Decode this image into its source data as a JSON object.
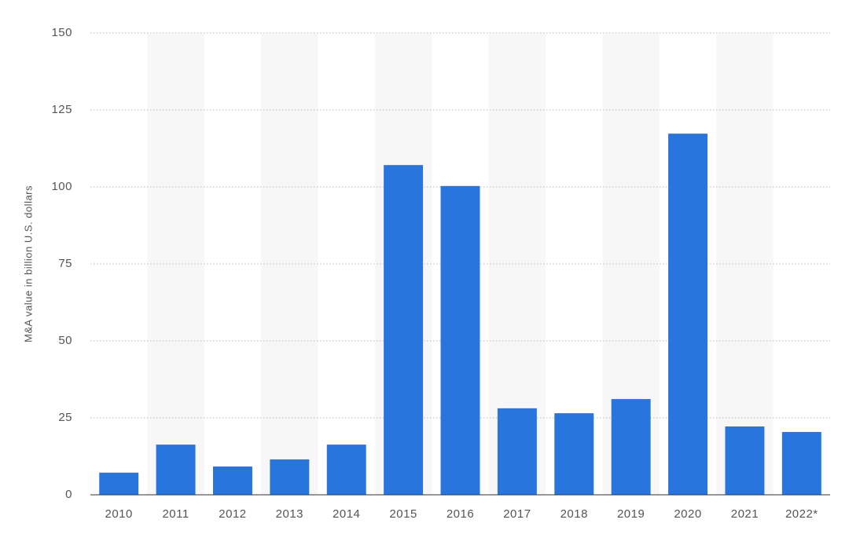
{
  "chart_data": {
    "type": "bar",
    "y_label": "M&A value in billion U.S. dollars",
    "categories": [
      "2010",
      "2011",
      "2012",
      "2013",
      "2014",
      "2015",
      "2016",
      "2017",
      "2018",
      "2019",
      "2020",
      "2021",
      "2022*"
    ],
    "values": [
      7.2,
      16.3,
      9.2,
      11.5,
      16.3,
      107.1,
      100.3,
      28.1,
      26.5,
      31.1,
      117.3,
      22.2,
      20.4
    ],
    "color": "#2876dd",
    "ylim": [
      0,
      150
    ],
    "yticks": [
      0,
      25,
      50,
      75,
      100,
      125,
      150
    ],
    "grid": true
  }
}
